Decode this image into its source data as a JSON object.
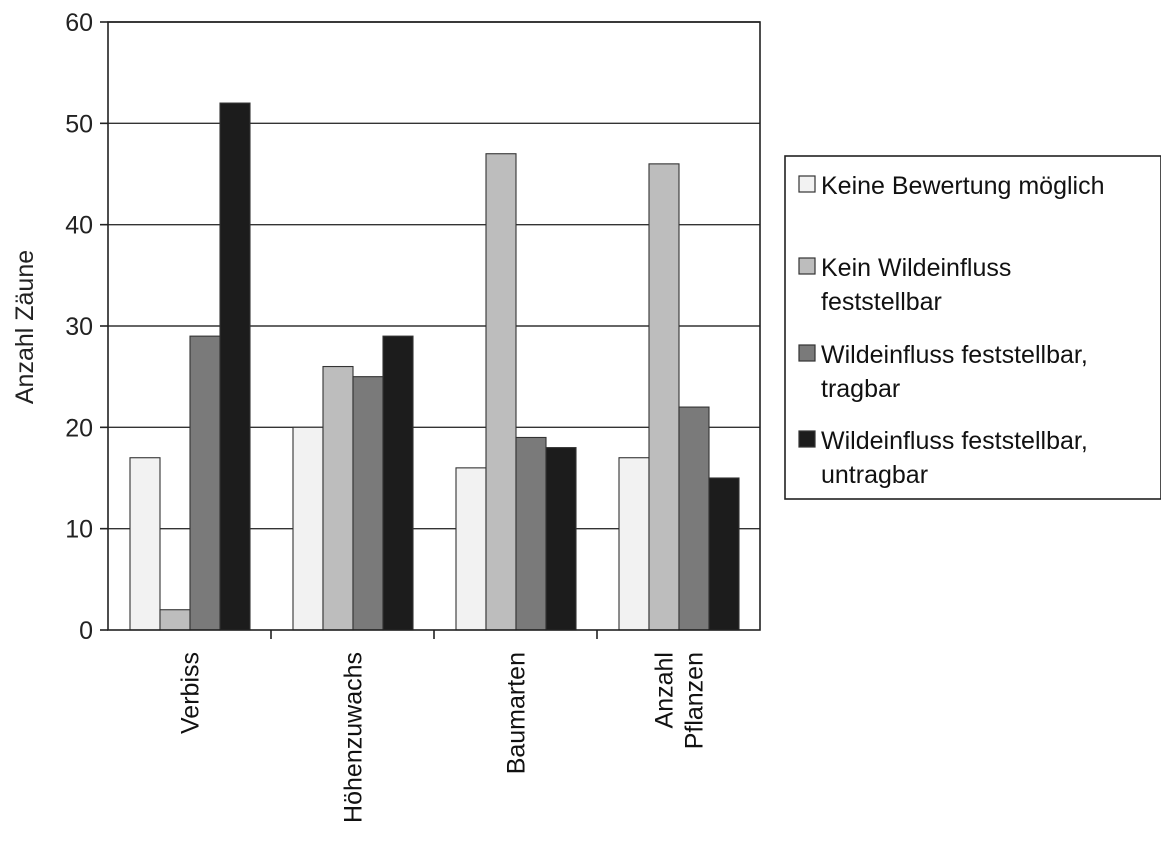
{
  "chart_data": {
    "type": "bar",
    "title": "",
    "xlabel": "",
    "ylabel": "Anzahl Zäune",
    "ylim": [
      0,
      60
    ],
    "yticks": [
      0,
      10,
      20,
      30,
      40,
      50,
      60
    ],
    "grid": true,
    "legend_position": "right",
    "categories": [
      [
        "Verbiss"
      ],
      [
        "Höhenzuwachs"
      ],
      [
        "Baumarten"
      ],
      [
        "Anzahl",
        "Pflanzen"
      ]
    ],
    "series": [
      {
        "name": [
          "Keine Bewertung möglich"
        ],
        "color": "#f2f2f2",
        "values": [
          17,
          20,
          16,
          17
        ]
      },
      {
        "name": [
          "Kein Wildeinfluss",
          "feststellbar"
        ],
        "color": "#bdbdbd",
        "values": [
          2,
          26,
          47,
          46
        ]
      },
      {
        "name": [
          "Wildeinfluss feststellbar,",
          "tragbar"
        ],
        "color": "#7a7a7a",
        "values": [
          29,
          25,
          19,
          22
        ]
      },
      {
        "name": [
          "Wildeinfluss feststellbar,",
          "untragbar"
        ],
        "color": "#1c1c1c",
        "values": [
          52,
          29,
          18,
          15
        ]
      }
    ]
  }
}
